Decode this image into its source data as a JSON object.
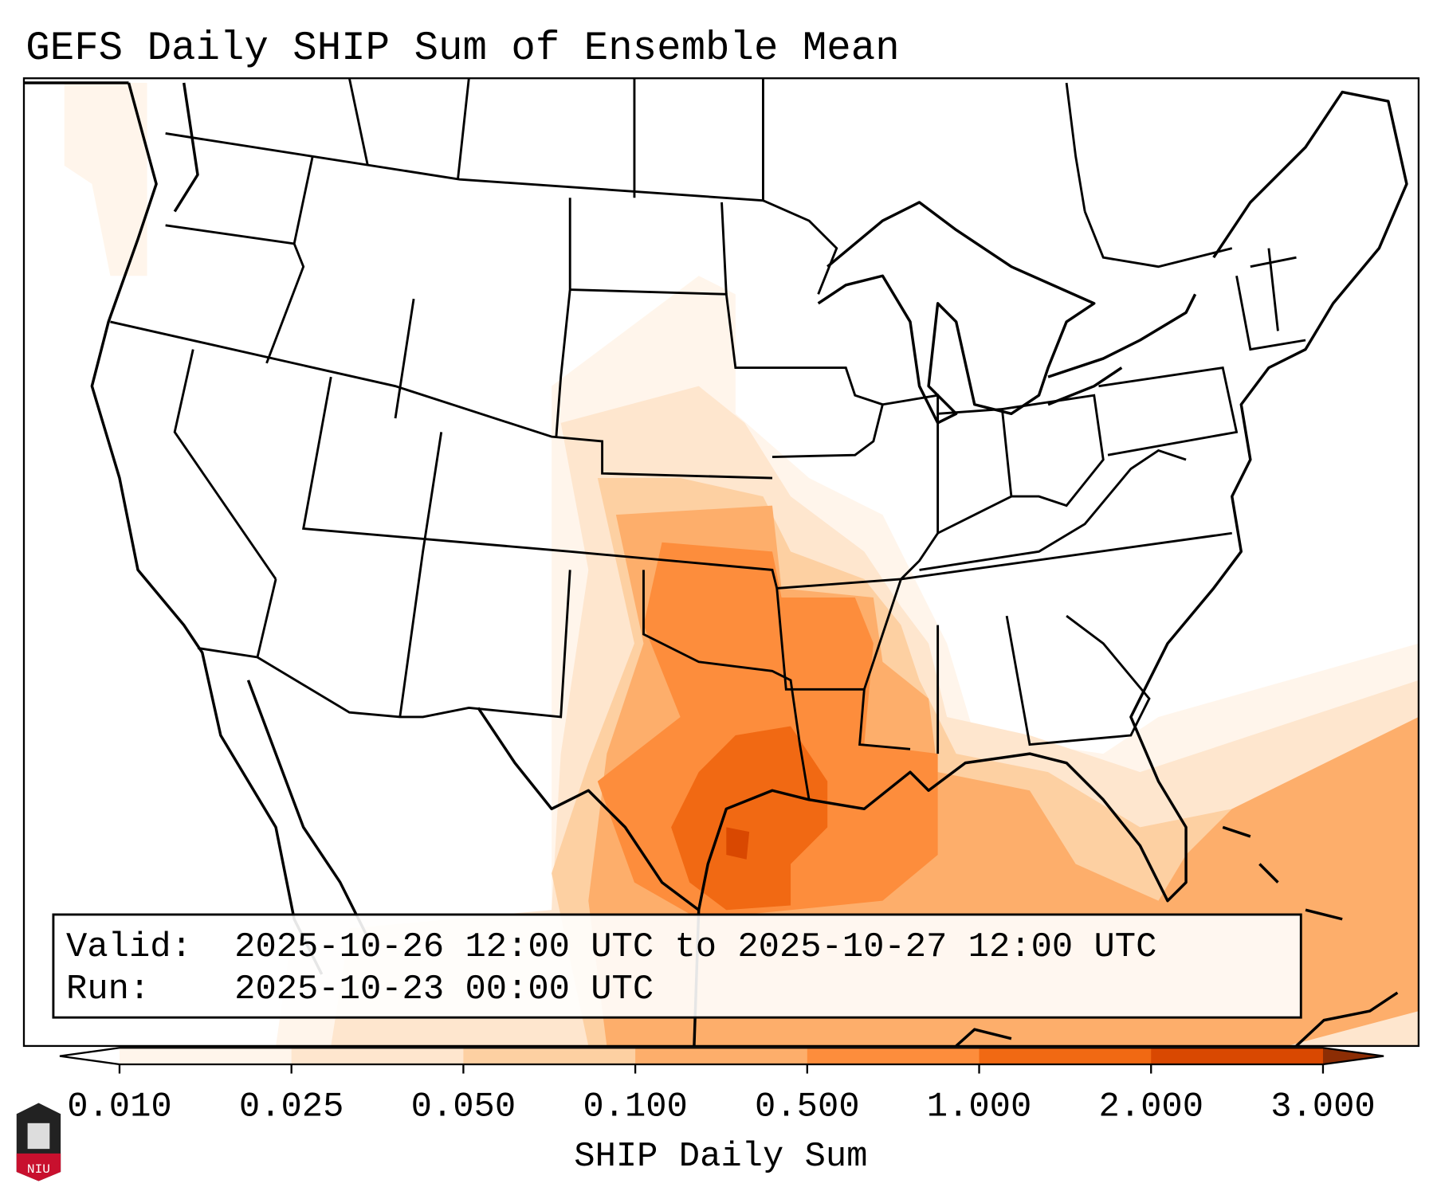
{
  "title": "GEFS Daily SHIP Sum of Ensemble Mean",
  "info": {
    "valid_label": "Valid:",
    "valid_value": "2025-10-26 12:00 UTC to 2025-10-27 12:00 UTC",
    "run_label": "Run:",
    "run_value": "2025-10-23 00:00 UTC"
  },
  "colorbar": {
    "label": "SHIP Daily Sum",
    "ticks": [
      "0.010",
      "0.025",
      "0.050",
      "0.100",
      "0.500",
      "1.000",
      "2.000",
      "3.000"
    ],
    "colors": [
      "#fff5eb",
      "#fee6ce",
      "#fdd0a2",
      "#fdae6b",
      "#fd8d3c",
      "#f16913",
      "#d94801"
    ],
    "extend_over_color": "#8c2d04",
    "extend_under_color": "#ffffff"
  },
  "logo": {
    "text": "NIU"
  }
}
